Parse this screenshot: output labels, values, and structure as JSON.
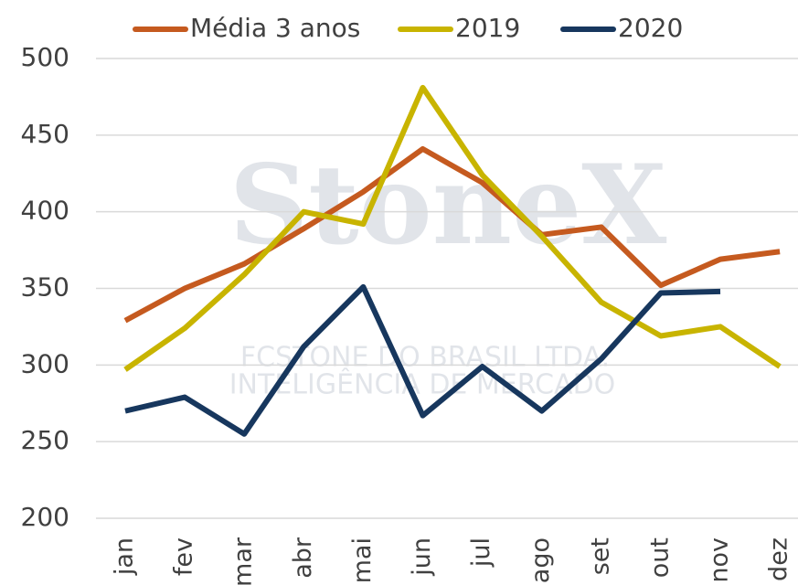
{
  "chart_data": {
    "type": "line",
    "categories": [
      "jan",
      "fev",
      "mar",
      "abr",
      "mai",
      "jun",
      "jul",
      "ago",
      "set",
      "out",
      "nov",
      "dez"
    ],
    "series": [
      {
        "name": "Média 3 anos",
        "color": "#c55a1f",
        "values": [
          329,
          350,
          366,
          389,
          413,
          441,
          419,
          385,
          390,
          352,
          369,
          374
        ]
      },
      {
        "name": "2019",
        "color": "#c8b400",
        "values": [
          297,
          324,
          359,
          400,
          392,
          481,
          424,
          384,
          341,
          319,
          325,
          299
        ]
      },
      {
        "name": "2020",
        "color": "#17375e",
        "values": [
          270,
          279,
          255,
          312,
          351,
          267,
          299,
          270,
          304,
          347,
          348,
          null
        ]
      }
    ],
    "ylim": [
      200,
      500
    ],
    "yticks": [
      200,
      250,
      300,
      350,
      400,
      450,
      500
    ],
    "grid": true,
    "legend": "top",
    "watermark": [
      "StoneX",
      "FCSTONE DO BRASIL LTDA.",
      "INTELIGÊNCIA DE MERCADO"
    ]
  }
}
